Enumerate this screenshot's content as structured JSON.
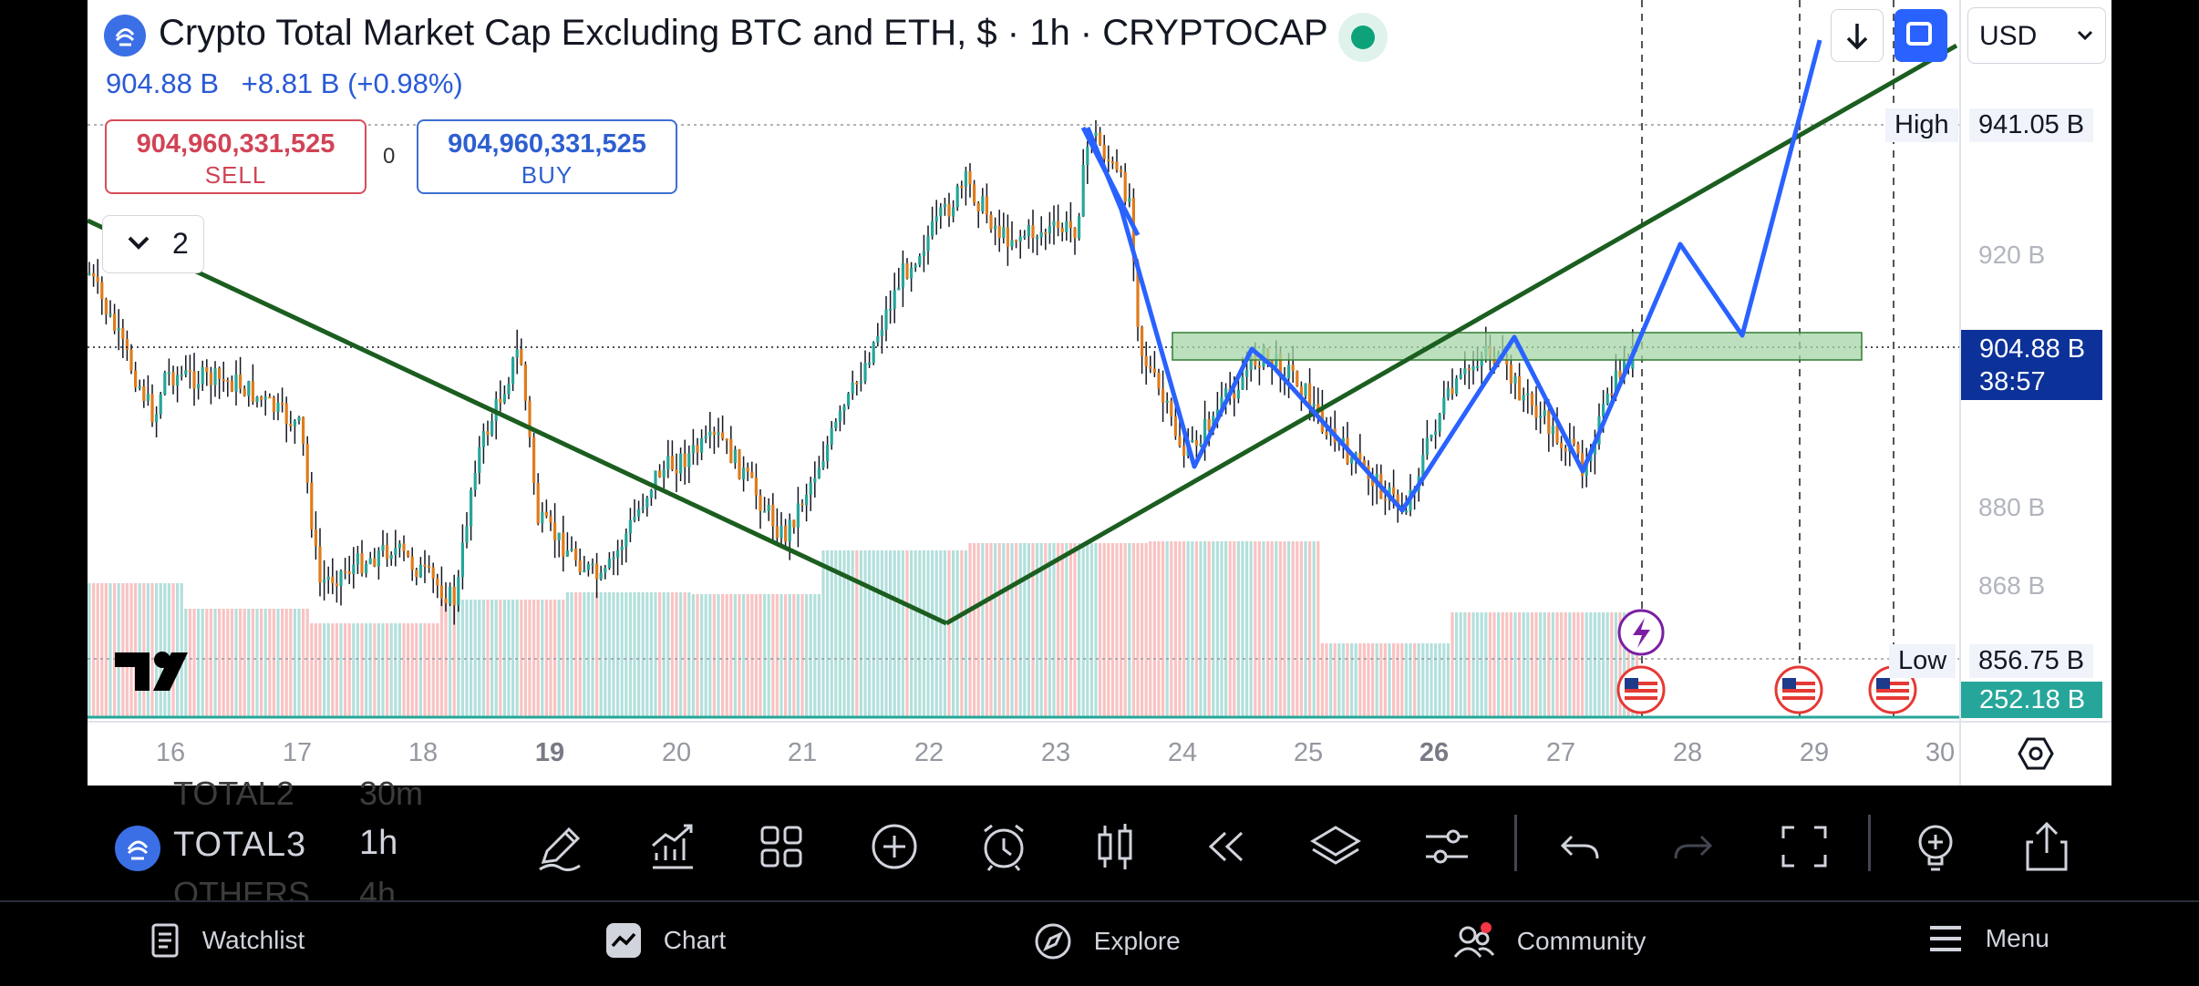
{
  "header": {
    "title": "Crypto Total Market Cap Excluding BTC and ETH, $ · 1h · CRYPTOCAP",
    "price": "904.88 B",
    "change": "+8.81 B (+0.98%)",
    "currency": "USD"
  },
  "trade": {
    "sell_price": "904,960,331,525",
    "sell_label": "SELL",
    "spread": "0",
    "buy_price": "904,960,331,525",
    "buy_label": "BUY"
  },
  "indicators": {
    "collapsed_count": "2"
  },
  "price_axis": {
    "labels": [
      "920 B",
      "880 B",
      "868 B"
    ],
    "high_label": "High",
    "high_value": "941.05 B",
    "low_label": "Low",
    "low_value": "856.75 B",
    "current_price": "904.88 B",
    "countdown": "38:57",
    "volume_value": "252.18 B"
  },
  "time_axis": {
    "labels": [
      "16",
      "17",
      "18",
      "19",
      "20",
      "21",
      "22",
      "23",
      "24",
      "25",
      "26",
      "27",
      "28",
      "29",
      "30"
    ],
    "bold": [
      "19",
      "26"
    ]
  },
  "symbol_bar": {
    "symbol_prev": "TOTAL2",
    "symbol": "TOTAL3",
    "symbol_next": "OTHERS",
    "timeframe_prev": "30m",
    "timeframe": "1h",
    "timeframe_next": "4h"
  },
  "nav": {
    "watchlist": "Watchlist",
    "chart": "Chart",
    "explore": "Explore",
    "community": "Community",
    "menu": "Menu"
  },
  "colors": {
    "up": "#26a69a",
    "down": "#ef5350",
    "trendline": "#1b5e20",
    "projection": "#2962ff",
    "zone": "#a5d6a7",
    "price_label": "#0c3299"
  },
  "chart_data": {
    "type": "candlestick",
    "symbol": "TOTAL3",
    "interval": "1h",
    "x": [
      "16",
      "17",
      "18",
      "19",
      "20",
      "21",
      "22",
      "23",
      "24",
      "25",
      "26",
      "27",
      "28",
      "29",
      "30"
    ],
    "last_price": 904.88,
    "high": 941.05,
    "low": 856.75,
    "volume": 252.18,
    "y_ticks": [
      920,
      880,
      868
    ]
  }
}
